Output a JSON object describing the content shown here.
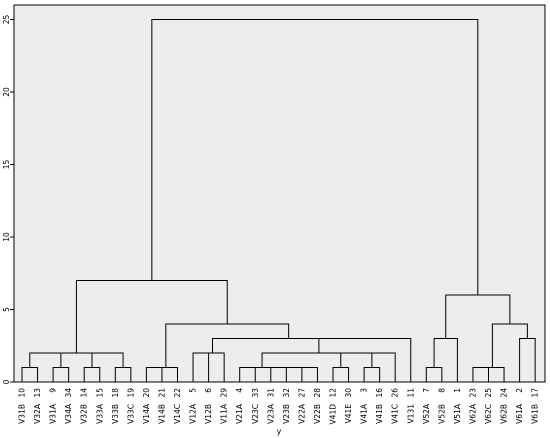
{
  "chart_data": {
    "type": "dendrogram",
    "xlabel": "y",
    "ylabel": "",
    "ylim": [
      0,
      26
    ],
    "yticks": [
      0,
      5,
      10,
      15,
      20,
      25
    ],
    "grid": false,
    "background": "#ededed",
    "line_color": "#000000",
    "leaves": [
      {
        "number": "10",
        "label": "V31B"
      },
      {
        "number": "13",
        "label": "V32A"
      },
      {
        "number": "9",
        "label": "V31A"
      },
      {
        "number": "34",
        "label": "V34A"
      },
      {
        "number": "14",
        "label": "V32B"
      },
      {
        "number": "15",
        "label": "V33A"
      },
      {
        "number": "18",
        "label": "V33B"
      },
      {
        "number": "19",
        "label": "V33C"
      },
      {
        "number": "20",
        "label": "V14A"
      },
      {
        "number": "21",
        "label": "V14B"
      },
      {
        "number": "22",
        "label": "V14C"
      },
      {
        "number": "5",
        "label": "V12A"
      },
      {
        "number": "6",
        "label": "V12B"
      },
      {
        "number": "29",
        "label": "V11A"
      },
      {
        "number": "4",
        "label": "V21A"
      },
      {
        "number": "33",
        "label": "V23C"
      },
      {
        "number": "31",
        "label": "V23A"
      },
      {
        "number": "32",
        "label": "V23B"
      },
      {
        "number": "27",
        "label": "V22A"
      },
      {
        "number": "28",
        "label": "V22B"
      },
      {
        "number": "12",
        "label": "V41D"
      },
      {
        "number": "30",
        "label": "V41E"
      },
      {
        "number": "3",
        "label": "V41A"
      },
      {
        "number": "16",
        "label": "V41B"
      },
      {
        "number": "26",
        "label": "V41C"
      },
      {
        "number": "11",
        "label": "V131"
      },
      {
        "number": "7",
        "label": "V52A"
      },
      {
        "number": "8",
        "label": "V52B"
      },
      {
        "number": "1",
        "label": "V51A"
      },
      {
        "number": "23",
        "label": "V62A"
      },
      {
        "number": "25",
        "label": "V62C"
      },
      {
        "number": "24",
        "label": "V62B"
      },
      {
        "number": "2",
        "label": "V61A"
      },
      {
        "number": "17",
        "label": "V61B"
      }
    ],
    "merges": [
      {
        "left": "L0",
        "right": "L1",
        "height": 1.0
      },
      {
        "left": "L2",
        "right": "L3",
        "height": 1.0
      },
      {
        "left": "M0",
        "right": "M1",
        "height": 2.0
      },
      {
        "left": "L4",
        "right": "L5",
        "height": 1.0
      },
      {
        "left": "L6",
        "right": "L7",
        "height": 1.0
      },
      {
        "left": "M3",
        "right": "M4",
        "height": 2.0
      },
      {
        "left": "M2",
        "right": "M5",
        "height": 2.0
      },
      {
        "left": "L8",
        "right": "L9",
        "height": 1.0
      },
      {
        "left": "M7",
        "right": "L10",
        "height": 1.0
      },
      {
        "left": "L11",
        "right": "L12",
        "height": 2.0
      },
      {
        "left": "M9",
        "right": "L13",
        "height": 2.0
      },
      {
        "left": "L15",
        "right": "L16",
        "height": 1.0
      },
      {
        "left": "L17",
        "right": "L18",
        "height": 1.0
      },
      {
        "left": "M12",
        "right": "L19",
        "height": 1.0
      },
      {
        "left": "M11",
        "right": "M13",
        "height": 1.0
      },
      {
        "left": "L14",
        "right": "M14",
        "height": 1.0
      },
      {
        "left": "L20",
        "right": "L21",
        "height": 1.0
      },
      {
        "left": "L22",
        "right": "L23",
        "height": 1.0
      },
      {
        "left": "M16",
        "right": "M17",
        "height": 2.0
      },
      {
        "left": "M18",
        "right": "L24",
        "height": 2.0
      },
      {
        "left": "M15",
        "right": "M19",
        "height": 2.0
      },
      {
        "left": "M20",
        "right": "L25",
        "height": 3.0
      },
      {
        "left": "M10",
        "right": "M21",
        "height": 3.0
      },
      {
        "left": "M8",
        "right": "M22",
        "height": 4.0
      },
      {
        "left": "M6",
        "right": "M23",
        "height": 7.0
      },
      {
        "left": "L26",
        "right": "L27",
        "height": 1.0
      },
      {
        "left": "M25",
        "right": "L28",
        "height": 3.0
      },
      {
        "left": "L29",
        "right": "L30",
        "height": 1.0
      },
      {
        "left": "M27",
        "right": "L31",
        "height": 1.0
      },
      {
        "left": "L32",
        "right": "L33",
        "height": 3.0
      },
      {
        "left": "M28",
        "right": "M29",
        "height": 4.0
      },
      {
        "left": "M26",
        "right": "M30",
        "height": 6.0
      },
      {
        "left": "M24",
        "right": "M31",
        "height": 25.0
      }
    ]
  }
}
